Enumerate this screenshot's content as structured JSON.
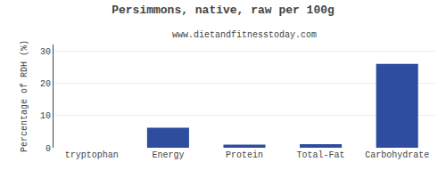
{
  "chart_data": {
    "type": "bar",
    "title": "Persimmons, native, raw per 100g",
    "subtitle": "www.dietandfitnesstoday.com",
    "categories": [
      "tryptophan",
      "Energy",
      "Protein",
      "Total-Fat",
      "Carbohydrate"
    ],
    "values": [
      0,
      6.2,
      1.0,
      1.1,
      26.0
    ],
    "color": "#2e4d9e",
    "ylabel": "Percentage of RDH (%)",
    "ylim": [
      0,
      32
    ],
    "yticks": [
      0,
      10,
      20,
      30
    ],
    "grid": true
  }
}
